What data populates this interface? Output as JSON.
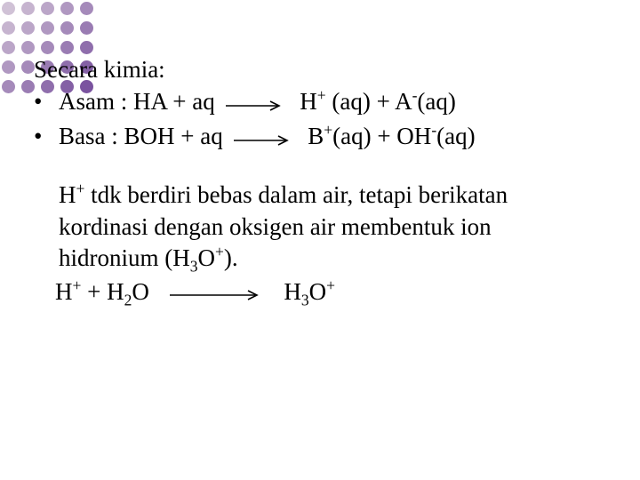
{
  "decor": {
    "dot_colors": [
      "#d0c2d6",
      "#c6b4cf",
      "#bba6c8",
      "#b098c1",
      "#a58aba",
      "#c6b4cf",
      "#bba6c8",
      "#b098c1",
      "#a58aba",
      "#9a7cb3",
      "#bba6c8",
      "#b098c1",
      "#a58aba",
      "#9a7cb3",
      "#8f6eac",
      "#b098c1",
      "#a58aba",
      "#9a7cb3",
      "#8f6eac",
      "#8460a5",
      "#a58aba",
      "#9a7cb3",
      "#8f6eac",
      "#8460a5",
      "#7a539f"
    ]
  },
  "slide": {
    "intro": "Secara kimia:",
    "bullet_glyph": "•",
    "reactions": [
      {
        "label": "Asam",
        "lhs_pre": " : HA + aq",
        "rhs": "H",
        "rhs_sup1": "+",
        "rhs_mid": " (aq) + A",
        "rhs_sup2": "-",
        "rhs_tail": "(aq)"
      },
      {
        "label": " Basa ",
        "lhs_pre": " : BOH + aq",
        "rhs": "B",
        "rhs_sup1": "+",
        "rhs_mid": "(aq) + OH",
        "rhs_sup2": "-",
        "rhs_tail": "(aq)"
      }
    ],
    "paragraph": {
      "p1": "H",
      "p1_sup": "+",
      "p2": " tdk berdiri bebas dalam air, tetapi berikatan kordinasi dengan oksigen air membentuk ion hidronium (H",
      "p2_sub": "3",
      "p3": "O",
      "p3_sup": "+",
      "p4": ")."
    },
    "hydronium": {
      "l1": "H",
      "l1_sup": "+",
      "l2": " + H",
      "l2_sub": "2",
      "l3": "O",
      "r1": "H",
      "r1_sub": "3",
      "r2": "O",
      "r2_sup": "+"
    },
    "arrow": {
      "width": 70,
      "height": 14,
      "stroke": "#000000",
      "stroke_width": 1.6
    },
    "arrow2": {
      "width": 110,
      "height": 14,
      "stroke": "#000000",
      "stroke_width": 1.6
    }
  }
}
